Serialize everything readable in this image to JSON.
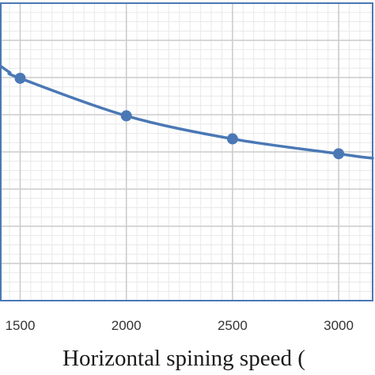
{
  "chart_data": {
    "type": "line",
    "xlabel": "Horizontal spining speed (",
    "x_ticks": [
      "1500",
      "2000",
      "2500",
      "3000"
    ],
    "x_tick_values": [
      1500,
      2000,
      2500,
      3000
    ],
    "xlim": [
      1405,
      3160
    ],
    "ylim": [
      0,
      8
    ],
    "grid": true,
    "minor_grid": true,
    "series": [
      {
        "x": [
          1500,
          2000,
          2500,
          3000
        ],
        "y": [
          5.98,
          4.97,
          4.35,
          3.95
        ],
        "color": "#4a78b5"
      }
    ],
    "curve_extension": {
      "x": [
        1405,
        1450,
        3100,
        3160
      ],
      "y": [
        6.32,
        6.14,
        3.87,
        3.83
      ]
    }
  }
}
